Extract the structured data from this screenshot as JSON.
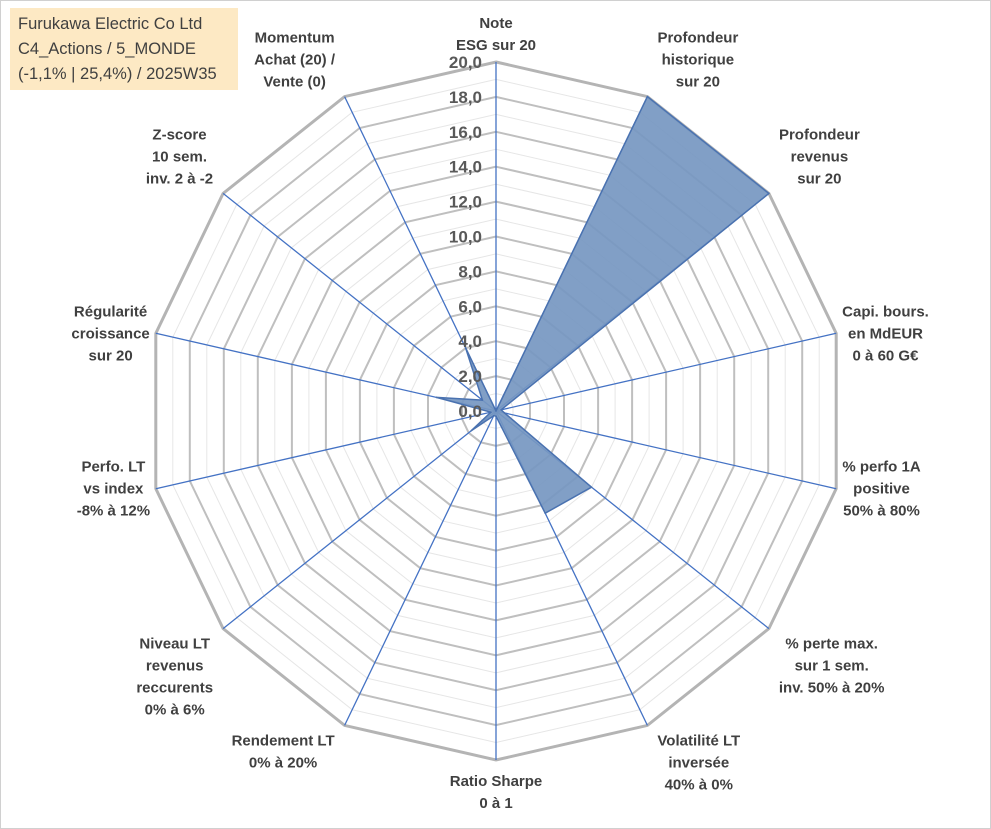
{
  "title_box": {
    "lines": [
      "Furukawa Electric Co Ltd",
      "C4_Actions / 5_MONDE",
      "(-1,1% | 25,4%) / 2025W35"
    ]
  },
  "chart_data": {
    "type": "radar",
    "title": "Furukawa Electric Co Ltd",
    "rlim": [
      0,
      20
    ],
    "ticks": [
      "0,0",
      "2,0",
      "4,0",
      "6,0",
      "8,0",
      "10,0",
      "12,0",
      "14,0",
      "16,0",
      "18,0",
      "20,0"
    ],
    "tick_values": [
      0,
      2,
      4,
      6,
      8,
      10,
      12,
      14,
      16,
      18,
      20
    ],
    "minor_grid_step": 1,
    "grid": true,
    "legend": "none",
    "colors": {
      "fill": "#7697c1",
      "edge": "#4a72b0",
      "spoke": "#4472c4",
      "grid": "#bfbfbf",
      "label": "#404040",
      "title_bg": "#fde9c4"
    },
    "axes": [
      {
        "label": [
          "Note",
          "ESG sur 20"
        ],
        "value": 0
      },
      {
        "label": [
          "Profondeur",
          "historique",
          "sur 20"
        ],
        "value": 20
      },
      {
        "label": [
          "Profondeur",
          "revenus",
          "sur 20"
        ],
        "value": 20
      },
      {
        "label": [
          "Capi. bours.",
          "en MdEUR",
          "0 à 60 G€"
        ],
        "value": 0.3
      },
      {
        "label": [
          "% perfo 1A",
          "positive",
          "50% à 80%"
        ],
        "value": 0.5
      },
      {
        "label": [
          "% perte max.",
          "sur 1 sem.",
          "inv. 50% à 20%"
        ],
        "value": 7
      },
      {
        "label": [
          "Volatilité LT",
          "inversée",
          "40% à 0%"
        ],
        "value": 6.5
      },
      {
        "label": [
          "Ratio Sharpe",
          "0 à 1"
        ],
        "value": 0.3
      },
      {
        "label": [
          "Rendement LT",
          "0% à 20%"
        ],
        "value": 0.3
      },
      {
        "label": [
          "Niveau LT",
          "revenus",
          "reccurents",
          "0% à 6%"
        ],
        "value": 1.8
      },
      {
        "label": [
          "Perfo. LT",
          "vs index",
          "-8% à 12%"
        ],
        "value": 0.3
      },
      {
        "label": [
          "Régularité",
          "croissance",
          "sur 20"
        ],
        "value": 3.5
      },
      {
        "label": [
          "Z-score",
          "10 sem.",
          "inv. 2 à -2"
        ],
        "value": 1
      },
      {
        "label": [
          "Momentum",
          "Achat (20) /",
          "Vente (0)"
        ],
        "value": 4
      }
    ]
  }
}
